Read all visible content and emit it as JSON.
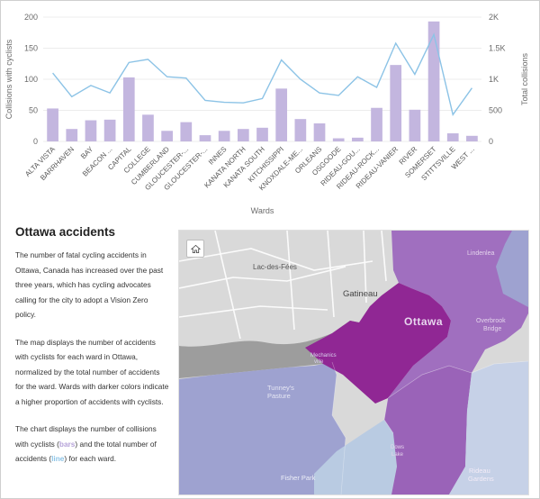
{
  "chart_data": {
    "type": "bar+line",
    "categories": [
      "ALTA VISTA",
      "BARRHAVEN",
      "BAY",
      "BEACON ...",
      "CAPITAL",
      "COLLEGE",
      "CUMBERLAND",
      "GLOUCESTER-...",
      "GLOUCESTER-...",
      "INNES",
      "KANATA NORTH",
      "KANATA SOUTH",
      "KITCHISSIPPI",
      "KNOXDALE-ME...",
      "ORLEANS",
      "OSGOODE",
      "RIDEAU-GOU...",
      "RIDEAU-ROCK...",
      "RIDEAU-VANIER",
      "RIVER",
      "SOMERSET",
      "STITTSVILLE",
      "WEST ..."
    ],
    "series": [
      {
        "name": "Collisions with cyclists",
        "type": "bar",
        "axis": "left",
        "color": "#c3b6df",
        "values": [
          53,
          20,
          34,
          35,
          103,
          43,
          17,
          31,
          10,
          17,
          20,
          22,
          85,
          36,
          29,
          5,
          6,
          54,
          123,
          51,
          193,
          13,
          9
        ]
      },
      {
        "name": "Total collisions",
        "type": "line",
        "axis": "right",
        "color": "#8cc3e6",
        "values": [
          1100,
          720,
          900,
          780,
          1270,
          1320,
          1040,
          1020,
          660,
          630,
          620,
          690,
          1310,
          1000,
          780,
          740,
          1040,
          870,
          1580,
          1080,
          1720,
          430,
          860
        ]
      }
    ],
    "ylabel": "Collisions with cyclists",
    "y2label": "Total collisions",
    "xlabel": "Wards",
    "ylim": [
      0,
      200
    ],
    "y2lim": [
      0,
      2000
    ],
    "yticks": [
      "0",
      "50",
      "100",
      "150",
      "200"
    ],
    "y2ticks": [
      "0",
      "500",
      "1K",
      "1.5K",
      "2K"
    ]
  },
  "narrative": {
    "title": "Ottawa accidents",
    "p1": "The number of fatal cycling accidents in Ottawa, Canada has increased over the past three years, which has cycling advocates calling for the city to adopt a Vision Zero policy.",
    "p2": "The map displays the number of accidents with cyclists for each ward in Ottawa, normalized by the total number of accidents for the ward. Wards with darker colors indicate a higher proportion of accidents with cyclists.",
    "p3_a": "The chart displays the number of collisions with cyclists (",
    "p3_bars": "bars",
    "p3_b": ") and the total number of accidents (",
    "p3_line": "line",
    "p3_c": ") for each ward."
  },
  "map": {
    "labels": {
      "lac": "Lac-des-Fées",
      "gatineau": "Gatineau",
      "ottawa": "Ottawa",
      "lindenlea": "Lindenlea",
      "overbrook": "Overbrook",
      "overbrook2": "Bridge",
      "mechanicsville": "Mechanics",
      "mechanicsville2": "ville",
      "tunneys": "Tunney's",
      "tunneys2": "Pasture",
      "dowslake": "Dows",
      "dowslake2": "Lake",
      "fisherpark": "Fisher Park",
      "rideaugardens": "Rideau",
      "rideaugardens2": "Gardens"
    },
    "home_icon": "home-icon"
  }
}
